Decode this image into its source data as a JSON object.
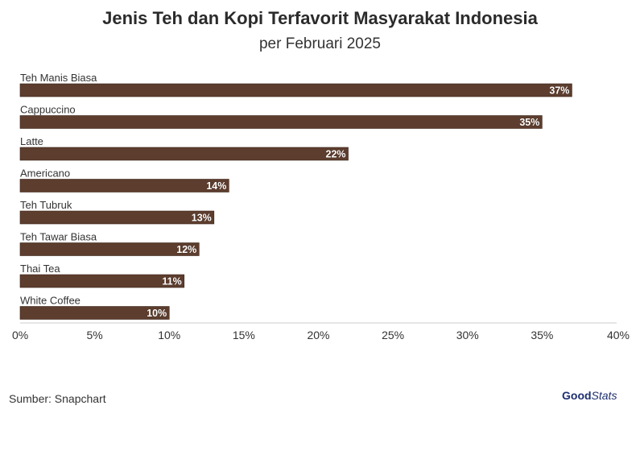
{
  "title": "Jenis Teh dan Kopi Terfavorit Masyarakat Indonesia",
  "subtitle": "per Februari 2025",
  "source": "Sumber: Snapchart",
  "logo": {
    "good": "Good",
    "stats": "Stats"
  },
  "colors": {
    "bar": "#5c3d2e",
    "bar_edge": "#3b2418",
    "label_text": "#ffffff",
    "axis": "#cccccc",
    "text": "#333333"
  },
  "chart_data": {
    "type": "bar",
    "orientation": "horizontal",
    "categories": [
      "Teh Manis Biasa",
      "Cappuccino",
      "Latte",
      "Americano",
      "Teh Tubruk",
      "Teh Tawar Biasa",
      "Thai Tea",
      "White Coffee"
    ],
    "values": [
      37,
      35,
      22,
      14,
      13,
      12,
      11,
      10
    ],
    "data_labels": [
      "37%",
      "35%",
      "22%",
      "14%",
      "13%",
      "12%",
      "11%",
      "10%"
    ],
    "xlim": [
      0,
      40
    ],
    "xticks": [
      0,
      5,
      10,
      15,
      20,
      25,
      30,
      35,
      40
    ],
    "xtick_labels": [
      "0%",
      "5%",
      "10%",
      "15%",
      "20%",
      "25%",
      "30%",
      "35%",
      "40%"
    ],
    "grid": false,
    "legend": "none"
  }
}
